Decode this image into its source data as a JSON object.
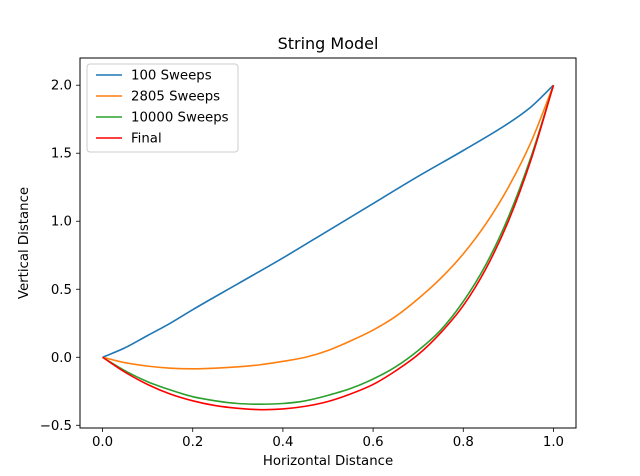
{
  "chart_data": {
    "type": "line",
    "title": "String Model",
    "xlabel": "Horizontal Distance",
    "ylabel": "Vertical Distance",
    "xlim": [
      -0.05,
      1.05
    ],
    "ylim": [
      -0.52,
      2.2
    ],
    "xticks": [
      0.0,
      0.2,
      0.4,
      0.6,
      0.8,
      1.0
    ],
    "xtick_labels": [
      "0.0",
      "0.2",
      "0.4",
      "0.6",
      "0.8",
      "1.0"
    ],
    "yticks": [
      -0.5,
      0.0,
      0.5,
      1.0,
      1.5,
      2.0
    ],
    "ytick_labels": [
      "−0.5",
      "0.0",
      "0.5",
      "1.0",
      "1.5",
      "2.0"
    ],
    "grid": false,
    "legend": {
      "position": "top-left"
    },
    "series": [
      {
        "name": "100 Sweeps",
        "color": "#1f77b4",
        "x": [
          0.0,
          0.05,
          0.1,
          0.15,
          0.2,
          0.3,
          0.4,
          0.5,
          0.6,
          0.7,
          0.8,
          0.9,
          0.95,
          1.0
        ],
        "y": [
          0.0,
          0.07,
          0.16,
          0.25,
          0.35,
          0.54,
          0.73,
          0.93,
          1.13,
          1.33,
          1.52,
          1.72,
          1.84,
          2.0
        ]
      },
      {
        "name": "2805 Sweeps",
        "color": "#ff7f0e",
        "x": [
          0.0,
          0.05,
          0.1,
          0.15,
          0.2,
          0.25,
          0.3,
          0.35,
          0.4,
          0.45,
          0.5,
          0.55,
          0.6,
          0.65,
          0.7,
          0.75,
          0.8,
          0.85,
          0.9,
          0.95,
          1.0
        ],
        "y": [
          0.0,
          -0.04,
          -0.065,
          -0.08,
          -0.085,
          -0.08,
          -0.07,
          -0.055,
          -0.03,
          0.0,
          0.05,
          0.12,
          0.2,
          0.3,
          0.43,
          0.58,
          0.76,
          0.98,
          1.25,
          1.58,
          2.0
        ]
      },
      {
        "name": "10000 Sweeps",
        "color": "#2ca02c",
        "x": [
          0.0,
          0.05,
          0.1,
          0.15,
          0.2,
          0.25,
          0.3,
          0.35,
          0.4,
          0.45,
          0.5,
          0.55,
          0.6,
          0.65,
          0.7,
          0.75,
          0.8,
          0.85,
          0.9,
          0.95,
          1.0
        ],
        "y": [
          0.0,
          -0.1,
          -0.18,
          -0.24,
          -0.29,
          -0.32,
          -0.34,
          -0.345,
          -0.34,
          -0.32,
          -0.28,
          -0.23,
          -0.16,
          -0.07,
          0.05,
          0.2,
          0.41,
          0.68,
          1.03,
          1.47,
          2.0
        ]
      },
      {
        "name": "Final",
        "color": "#ff0000",
        "x": [
          0.0,
          0.05,
          0.1,
          0.15,
          0.2,
          0.25,
          0.3,
          0.35,
          0.4,
          0.45,
          0.5,
          0.55,
          0.6,
          0.65,
          0.7,
          0.75,
          0.8,
          0.85,
          0.9,
          0.95,
          1.0
        ],
        "y": [
          0.0,
          -0.11,
          -0.2,
          -0.27,
          -0.32,
          -0.355,
          -0.375,
          -0.385,
          -0.38,
          -0.36,
          -0.325,
          -0.27,
          -0.2,
          -0.1,
          0.02,
          0.18,
          0.38,
          0.65,
          1.0,
          1.45,
          2.0
        ]
      }
    ]
  }
}
